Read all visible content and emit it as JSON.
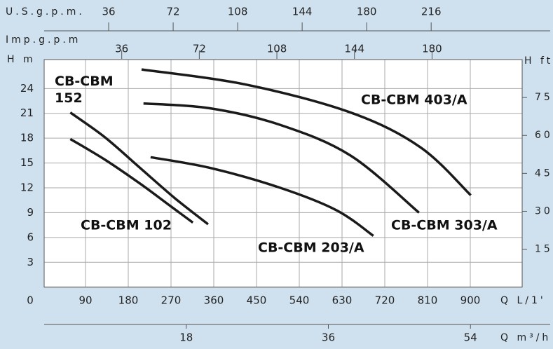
{
  "chart_data": {
    "type": "line",
    "x_label": "Q L/1'",
    "y_label": "H m",
    "y2_label": "H ft",
    "xlim": [
      0,
      1010
    ],
    "xticks": [
      90,
      180,
      270,
      360,
      450,
      540,
      630,
      720,
      810,
      900
    ],
    "ylim": [
      0,
      27.5
    ],
    "yticks": [
      0,
      3,
      6,
      9,
      12,
      15,
      18,
      21,
      24
    ],
    "y2lim": [
      0,
      90
    ],
    "y2ticks": [
      15,
      30,
      45,
      60,
      75
    ],
    "grid": true,
    "top_axes": [
      {
        "label": "U.S.g.p.m.",
        "lim": [
          0,
          267
        ],
        "ticks": [
          36,
          72,
          108,
          144,
          180,
          216
        ]
      },
      {
        "label": "Imp.g.p.m",
        "lim": [
          0,
          222
        ],
        "ticks": [
          36,
          72,
          108,
          144,
          180
        ]
      }
    ],
    "bottom_axis": {
      "label": "Q m³/h",
      "lim": [
        0,
        60.6
      ],
      "ticks": [
        18,
        36,
        54
      ]
    },
    "series": [
      {
        "name": "CB-CBM 403/A",
        "color": "#1a1a1a",
        "x": [
          208,
          426,
          648,
          795,
          901
        ],
        "values": [
          26.3,
          24.5,
          21.1,
          16.9,
          11.1
        ]
      },
      {
        "name": "CB-CBM 303/A",
        "color": "#1a1a1a",
        "x": [
          212,
          353,
          500,
          648,
          792
        ],
        "values": [
          22.2,
          21.6,
          19.6,
          15.9,
          9.0
        ]
      },
      {
        "name": "CB-CBM 203/A",
        "color": "#1a1a1a",
        "x": [
          227,
          353,
          500,
          618,
          696
        ],
        "values": [
          15.7,
          14.4,
          12.0,
          9.3,
          6.2
        ]
      },
      {
        "name": "CB-CBM 152",
        "color": "#1a1a1a",
        "x": [
          58,
          131,
          205,
          279,
          348
        ],
        "values": [
          21.1,
          18.1,
          14.4,
          10.7,
          7.6
        ]
      },
      {
        "name": "CB-CBM 102",
        "color": "#1a1a1a",
        "x": [
          58,
          131,
          205,
          264,
          316
        ],
        "values": [
          17.9,
          15.4,
          12.5,
          10.0,
          7.8
        ]
      }
    ]
  }
}
